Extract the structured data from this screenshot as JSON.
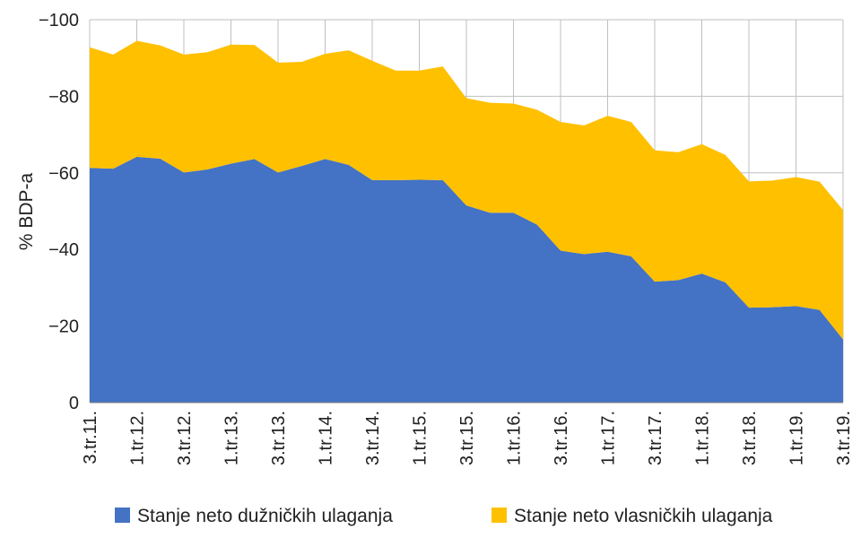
{
  "chart_data": {
    "type": "area",
    "stacked": true,
    "ylabel": "% BDP-a",
    "ylim": [
      -100,
      0
    ],
    "yticks": [
      "−100",
      "−80",
      "−60",
      "−40",
      "−20",
      "0"
    ],
    "ytick_values": [
      -100,
      -80,
      -60,
      -40,
      -20,
      0
    ],
    "grid": true,
    "legend_position": "bottom",
    "x_labels": [
      "3.tr.11.",
      "1.tr.12.",
      "3.tr.12.",
      "1.tr.13.",
      "3.tr.13.",
      "1.tr.14.",
      "3.tr.14.",
      "1.tr.15.",
      "3.tr.15.",
      "1.tr.16.",
      "3.tr.16.",
      "1.tr.17.",
      "3.tr.17.",
      "1.tr.18.",
      "3.tr.18.",
      "1.tr.19.",
      "3.tr.19."
    ],
    "series": [
      {
        "name": "Stanje neto dužničkih ulaganja",
        "color": "#4472C4",
        "values": [
          -61.3,
          -61.1,
          -64.2,
          -63.7,
          -60.1,
          -60.9,
          -62.4,
          -63.6,
          -60.1,
          -61.8,
          -63.6,
          -62.1,
          -58.1,
          -58.1,
          -58.2,
          -58.1,
          -51.5,
          -49.6,
          -49.6,
          -46.5,
          -39.7,
          -38.8,
          -39.4,
          -38.2,
          -31.6,
          -32.0,
          -33.7,
          -31.4,
          -24.8,
          -24.9,
          -25.2,
          -24.2,
          -16.5
        ]
      },
      {
        "name": "Stanje neto vlasničkih ulaganja",
        "color": "#FFC000",
        "values": [
          -31.5,
          -29.8,
          -30.3,
          -29.6,
          -30.8,
          -30.6,
          -31.1,
          -29.8,
          -28.7,
          -27.2,
          -27.5,
          -29.9,
          -31.2,
          -28.6,
          -28.5,
          -29.7,
          -28.0,
          -28.7,
          -28.5,
          -30.0,
          -33.6,
          -33.6,
          -35.5,
          -35.1,
          -34.3,
          -33.4,
          -33.8,
          -33.3,
          -33.0,
          -33.1,
          -33.7,
          -33.5,
          -33.8
        ]
      }
    ]
  }
}
